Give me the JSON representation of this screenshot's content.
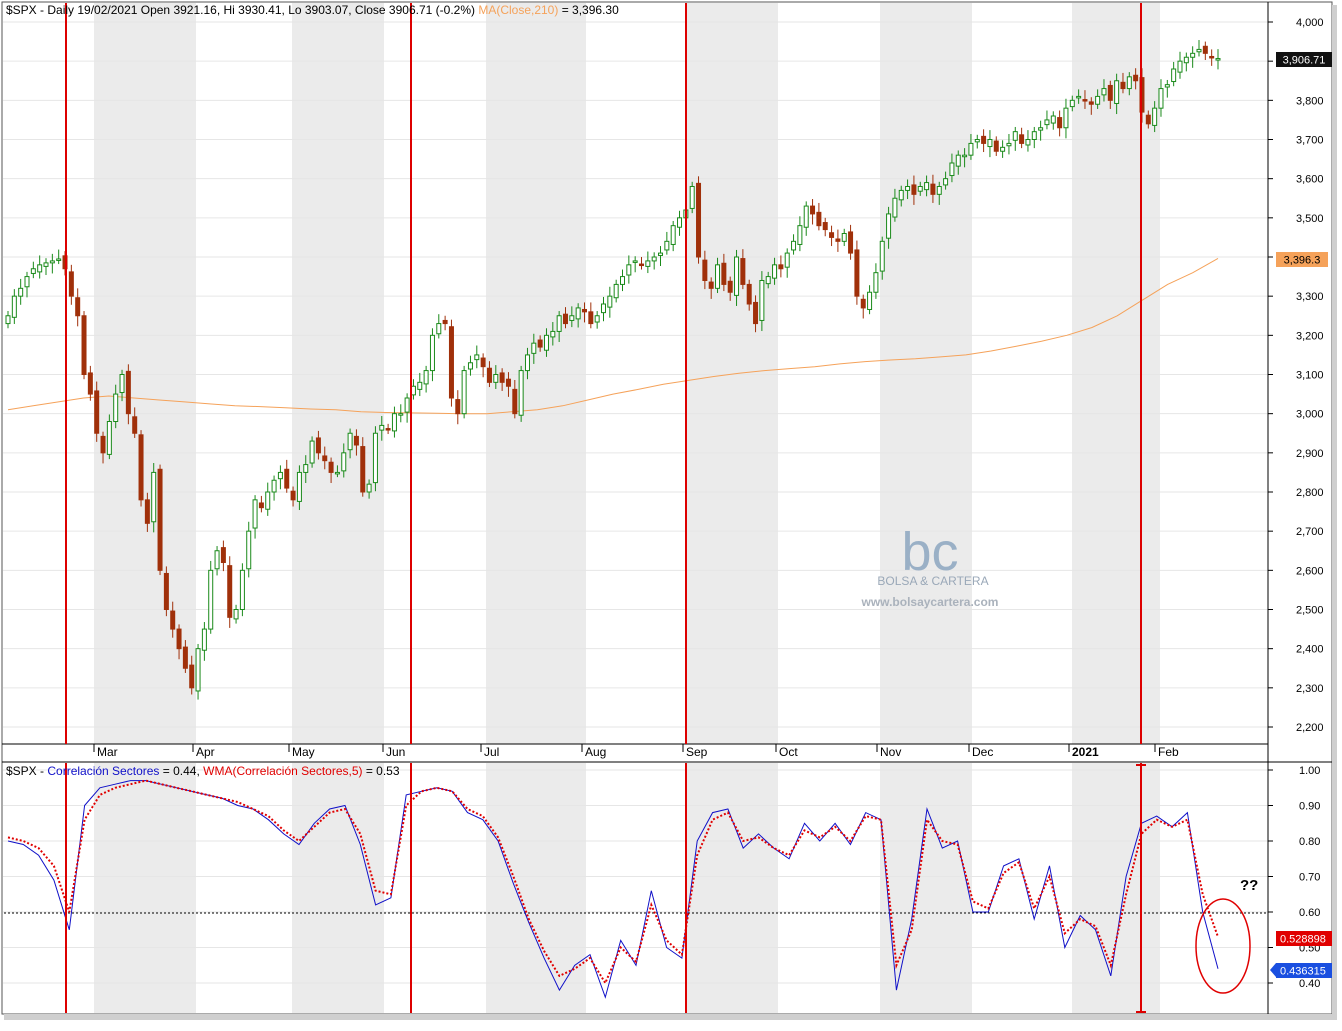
{
  "top_panel": {
    "header": {
      "symbol": "$SPX",
      "info": " - Daily 19/02/2021 Open 3921.16, Hi 3930.41, Lo 3903.07, Close 3906.71 (-0.2%) ",
      "ma_label": "MA(Close,210)",
      "ma_value": " = 3,396.30"
    },
    "price_tag": "3,906.71",
    "ma_tag": "3,396.3",
    "y_ticks": [
      "2,200",
      "2,300",
      "2,400",
      "2,500",
      "2,600",
      "2,700",
      "2,800",
      "2,900",
      "3,000",
      "3,100",
      "3,200",
      "3,300",
      "3,400",
      "3,500",
      "3,600",
      "3,700",
      "3,800",
      "3,900",
      "4,000"
    ],
    "months": [
      "Mar",
      "Apr",
      "May",
      "Jun",
      "Jul",
      "Aug",
      "Sep",
      "Oct",
      "Nov",
      "Dec",
      "2021",
      "Feb"
    ],
    "watermark": {
      "logo": "bc",
      "name": "BOLSA & CARTERA",
      "url": "www.bolsaycartera.com"
    }
  },
  "bottom_panel": {
    "header": {
      "symbol": "$SPX",
      "sep": " - ",
      "series1_label": "Correlación Sectores",
      "series1_value": " = 0.44, ",
      "series2_label": "WMA(Correlación Sectores,5)",
      "series2_value": " = 0.53"
    },
    "tag_wma": "0.528898",
    "tag_corr": "0.436315",
    "annotation": "??",
    "y_ticks": [
      "0.40",
      "0.50",
      "0.60",
      "0.70",
      "0.80",
      "0.90",
      "1.00"
    ],
    "threshold": 0.6
  },
  "colors": {
    "up": "#1a8a1a",
    "down": "#a0300a",
    "ma": "#f5a25a",
    "corr": "#1010c8",
    "wma": "#e00000",
    "vline": "#dd0000"
  },
  "chart_data": [
    {
      "type": "candlestick",
      "series": [
        {
          "name": "$SPX",
          "values": [
            3250,
            3300,
            3320,
            3350,
            3370,
            3380,
            3385,
            3390,
            3395,
            3370,
            3300,
            3250,
            3100,
            3050,
            2950,
            2900,
            2980,
            3050,
            3100,
            3000,
            2950,
            2780,
            2720,
            2850,
            2600,
            2500,
            2450,
            2400,
            2350,
            2300,
            2400,
            2450,
            2600,
            2650,
            2620,
            2480,
            2500,
            2600,
            2700,
            2780,
            2760,
            2800,
            2830,
            2850,
            2810,
            2780,
            2850,
            2870,
            2930,
            2900,
            2880,
            2850,
            2850,
            2900,
            2950,
            2920,
            2800,
            2820,
            2950,
            2970,
            2960,
            3000,
            3000,
            3040,
            3070,
            3080,
            3110,
            3200,
            3230,
            3230,
            3040,
            3000,
            3110,
            3130,
            3150,
            3120,
            3080,
            3100,
            3080,
            3070,
            3000,
            3110,
            3150,
            3180,
            3170,
            3200,
            3210,
            3250,
            3230,
            3250,
            3270,
            3260,
            3230,
            3250,
            3280,
            3300,
            3330,
            3350,
            3380,
            3390,
            3380,
            3390,
            3400,
            3410,
            3440,
            3480,
            3500,
            3520,
            3580,
            3400,
            3340,
            3320,
            3380,
            3330,
            3310,
            3400,
            3330,
            3280,
            3230,
            3340,
            3350,
            3380,
            3370,
            3410,
            3440,
            3480,
            3530,
            3510,
            3480,
            3470,
            3450,
            3440,
            3460,
            3410,
            3300,
            3270,
            3310,
            3360,
            3440,
            3510,
            3550,
            3570,
            3580,
            3560,
            3580,
            3590,
            3560,
            3580,
            3600,
            3640,
            3660,
            3660,
            3690,
            3700,
            3690,
            3700,
            3670,
            3680,
            3690,
            3720,
            3690,
            3700,
            3720,
            3730,
            3750,
            3760,
            3730,
            3780,
            3800,
            3810,
            3800,
            3790,
            3810,
            3830,
            3800,
            3850,
            3830,
            3860,
            3850,
            3770,
            3740,
            3780,
            3830,
            3840,
            3880,
            3900,
            3910,
            3920,
            3930,
            3920,
            3910,
            3906.71
          ]
        },
        {
          "name": "MA(Close,210)",
          "values": [
            3010,
            3020,
            3030,
            3040,
            3045,
            3040,
            3035,
            3030,
            3025,
            3020,
            3018,
            3015,
            3012,
            3010,
            3005,
            3003,
            3002,
            3001,
            3000,
            3000,
            3005,
            3010,
            3020,
            3035,
            3050,
            3062,
            3075,
            3085,
            3095,
            3103,
            3110,
            3115,
            3120,
            3127,
            3133,
            3137,
            3140,
            3145,
            3150,
            3160,
            3172,
            3185,
            3200,
            3220,
            3250,
            3290,
            3330,
            3360,
            3396.3
          ]
        }
      ]
    },
    {
      "type": "line",
      "ylim": [
        0.35,
        1.0
      ],
      "series": [
        {
          "name": "Correlación Sectores",
          "values": [
            0.8,
            0.79,
            0.76,
            0.69,
            0.55,
            0.9,
            0.95,
            0.96,
            0.97,
            0.97,
            0.96,
            0.95,
            0.94,
            0.93,
            0.92,
            0.9,
            0.89,
            0.86,
            0.82,
            0.79,
            0.85,
            0.89,
            0.9,
            0.79,
            0.62,
            0.64,
            0.93,
            0.94,
            0.95,
            0.94,
            0.88,
            0.86,
            0.8,
            0.68,
            0.57,
            0.47,
            0.38,
            0.45,
            0.48,
            0.36,
            0.52,
            0.45,
            0.66,
            0.5,
            0.47,
            0.8,
            0.88,
            0.89,
            0.78,
            0.82,
            0.78,
            0.75,
            0.85,
            0.8,
            0.85,
            0.79,
            0.88,
            0.86,
            0.38,
            0.58,
            0.89,
            0.78,
            0.8,
            0.6,
            0.6,
            0.73,
            0.75,
            0.58,
            0.73,
            0.5,
            0.59,
            0.55,
            0.42,
            0.7,
            0.85,
            0.87,
            0.84,
            0.88,
            0.6,
            0.44
          ]
        },
        {
          "name": "WMA(Correlación Sectores,5)",
          "values": [
            0.81,
            0.8,
            0.78,
            0.73,
            0.6,
            0.86,
            0.93,
            0.95,
            0.96,
            0.97,
            0.96,
            0.95,
            0.94,
            0.93,
            0.92,
            0.91,
            0.89,
            0.87,
            0.83,
            0.8,
            0.84,
            0.88,
            0.89,
            0.82,
            0.66,
            0.65,
            0.9,
            0.94,
            0.95,
            0.94,
            0.89,
            0.87,
            0.81,
            0.7,
            0.58,
            0.49,
            0.42,
            0.44,
            0.47,
            0.4,
            0.5,
            0.46,
            0.62,
            0.52,
            0.48,
            0.76,
            0.86,
            0.88,
            0.8,
            0.81,
            0.78,
            0.76,
            0.83,
            0.81,
            0.84,
            0.8,
            0.87,
            0.86,
            0.45,
            0.55,
            0.86,
            0.8,
            0.79,
            0.63,
            0.61,
            0.71,
            0.74,
            0.61,
            0.7,
            0.54,
            0.58,
            0.56,
            0.45,
            0.65,
            0.82,
            0.86,
            0.84,
            0.86,
            0.65,
            0.53
          ]
        }
      ]
    }
  ]
}
